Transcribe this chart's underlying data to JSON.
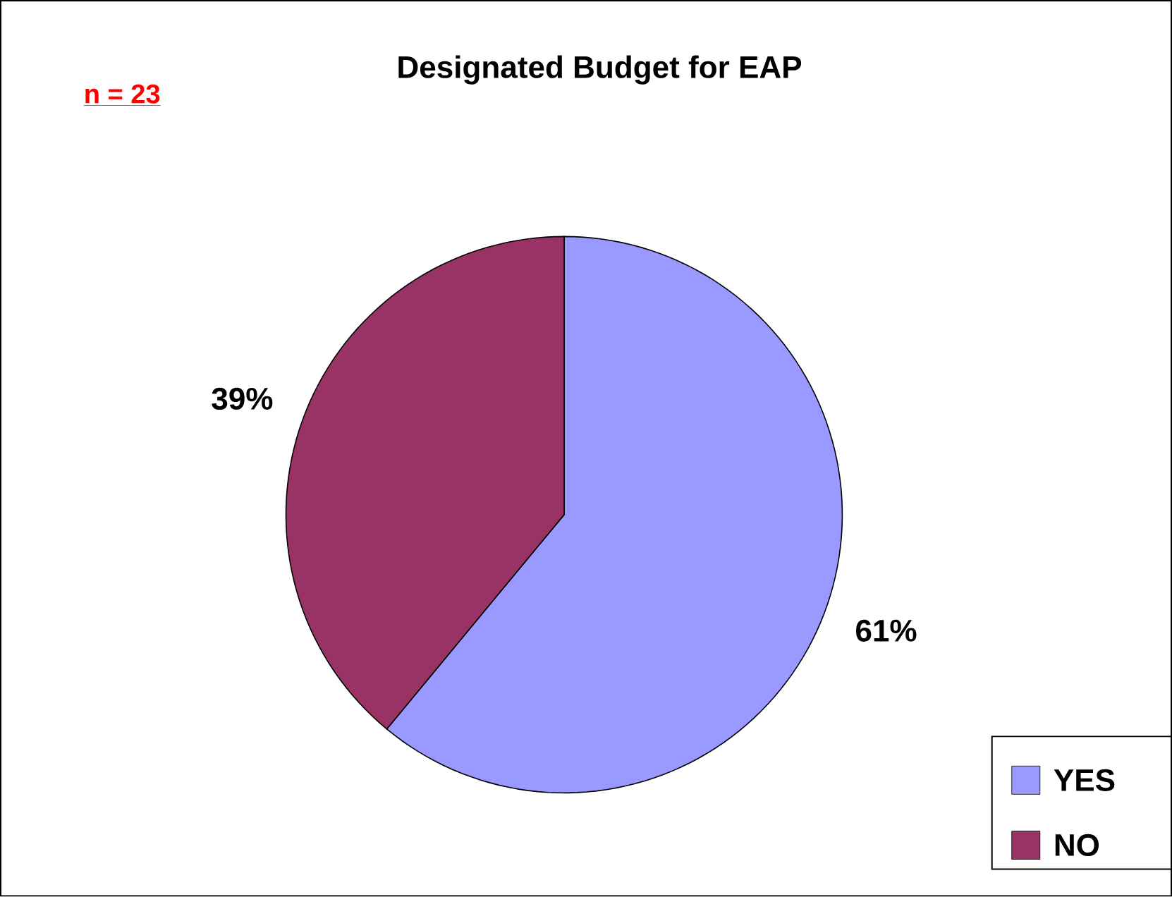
{
  "chart_data": {
    "type": "pie",
    "title": "Designated Budget for EAP",
    "annotations": [
      "n = 23"
    ],
    "categories": [
      "YES",
      "NO"
    ],
    "values": [
      61,
      39
    ],
    "colors": [
      "#9999ff",
      "#993366"
    ],
    "value_labels": [
      "61%",
      "39%"
    ],
    "legend": "bottom right"
  }
}
